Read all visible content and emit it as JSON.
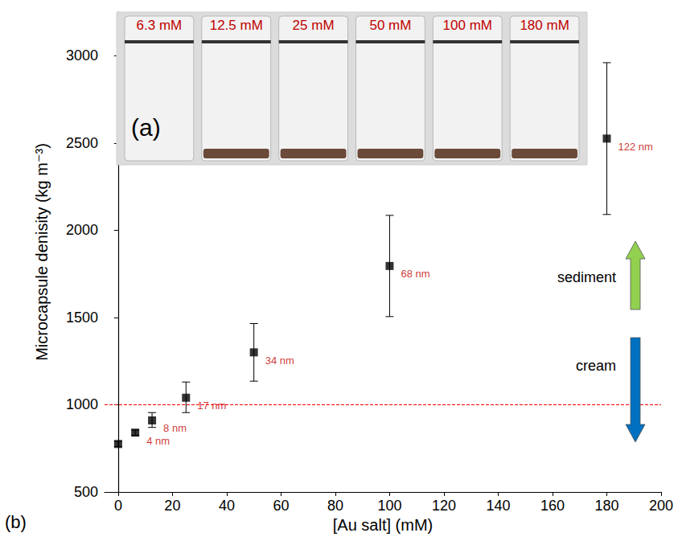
{
  "chart_data": {
    "type": "scatter",
    "x_label": "[Au salt] (mM)",
    "y_label": "Microcapsule denisity (kg m⁻³)",
    "x": [
      0,
      6.3,
      12.5,
      25,
      50,
      100,
      180
    ],
    "values": [
      775,
      840,
      910,
      1040,
      1300,
      1795,
      2525
    ],
    "error_bars": [
      [
        760,
        790
      ],
      [
        825,
        855
      ],
      [
        870,
        955
      ],
      [
        955,
        1130
      ],
      [
        1135,
        1465
      ],
      [
        1505,
        2085
      ],
      [
        2090,
        2960
      ]
    ],
    "point_labels": [
      null,
      "4 nm",
      "8 nm",
      "17 nm",
      "34 nm",
      "68 nm",
      "122 nm"
    ],
    "color": "#000000",
    "marker": "square",
    "xlim": [
      -5,
      200
    ],
    "xticks": [
      0,
      20,
      40,
      60,
      80,
      100,
      120,
      140,
      160,
      180,
      200
    ],
    "ylim": [
      500,
      3250
    ],
    "yticks": [
      500,
      1000,
      1500,
      2000,
      2500,
      3000
    ],
    "grid": false,
    "reference_line": {
      "value": 1000,
      "color": "#ff0000",
      "line_style": "dashed"
    },
    "annotations": [
      {
        "text": "sediment",
        "arrow": "up",
        "color": "#92d050"
      },
      {
        "text": "cream",
        "arrow": "down",
        "color": "#0070c0"
      }
    ],
    "inset": {
      "label": "(a)",
      "samples": [
        "6.3 mM",
        "12.5 mM",
        "25 mM",
        "50 mM",
        "100 mM",
        "180 mM"
      ]
    },
    "panel_label": "(b)"
  }
}
